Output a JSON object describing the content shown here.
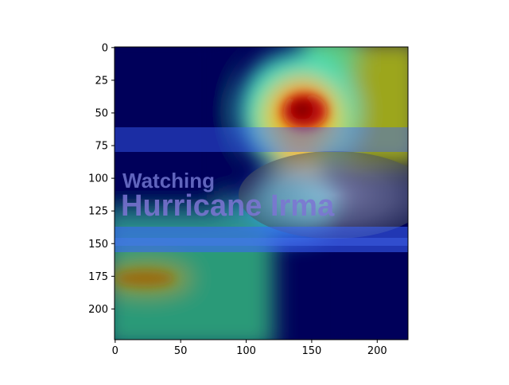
{
  "image": {
    "caption_line1": "Watching",
    "caption_line2": "Hurricane Irma"
  },
  "axes": {
    "x": {
      "range": [
        0,
        224
      ],
      "ticks": [
        {
          "value": 0,
          "label": "0"
        },
        {
          "value": 50,
          "label": "50"
        },
        {
          "value": 100,
          "label": "100"
        },
        {
          "value": 150,
          "label": "150"
        },
        {
          "value": 200,
          "label": "200"
        }
      ]
    },
    "y": {
      "range": [
        0,
        224
      ],
      "inverted": true,
      "ticks": [
        {
          "value": 0,
          "label": "0"
        },
        {
          "value": 25,
          "label": "25"
        },
        {
          "value": 50,
          "label": "50"
        },
        {
          "value": 75,
          "label": "75"
        },
        {
          "value": 100,
          "label": "100"
        },
        {
          "value": 125,
          "label": "125"
        },
        {
          "value": 150,
          "label": "150"
        },
        {
          "value": 175,
          "label": "175"
        },
        {
          "value": 200,
          "label": "200"
        }
      ]
    }
  },
  "overlay": {
    "colormap": "jet",
    "hotspots": [
      {
        "name": "peak-top",
        "x": 145,
        "y": 50,
        "intensity": 1.0
      },
      {
        "name": "bottom-left",
        "x": 25,
        "y": 178,
        "intensity": 0.55
      }
    ]
  }
}
